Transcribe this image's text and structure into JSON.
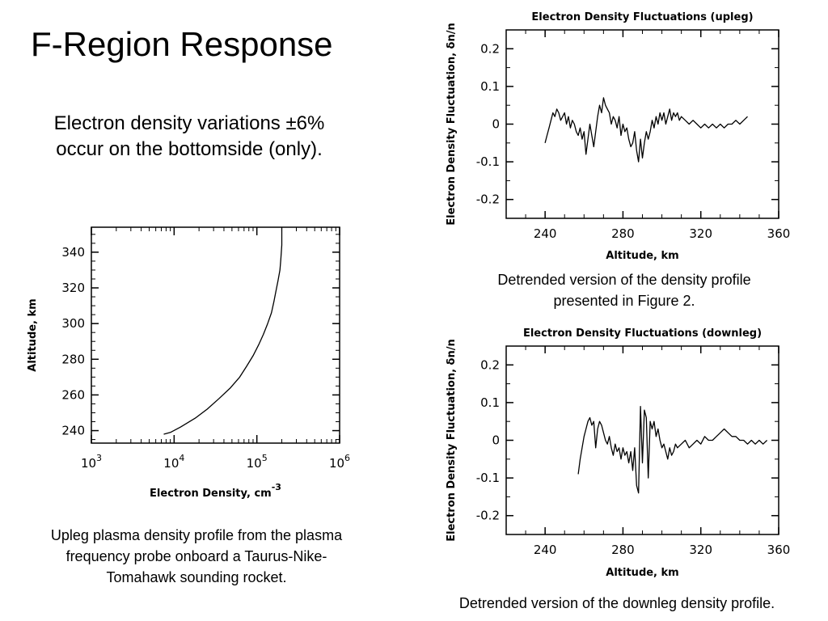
{
  "slide": {
    "title": "F-Region Response",
    "subtitle_lines": [
      "Electron density variations ±6%",
      "occur on the bottomside (only)."
    ]
  },
  "captions": {
    "left_lines": [
      "Upleg plasma density profile from the plasma",
      "frequency probe onboard a Taurus-Nike-",
      "Tomahawk sounding rocket."
    ],
    "top_right_lines": [
      "Detrended version of the density profile",
      "presented in Figure 2."
    ],
    "bottom_right_lines": [
      "Detrended version of the downleg density profile."
    ]
  },
  "chart_data": [
    {
      "type": "line",
      "title": "",
      "xlabel": "Electron Density, cm",
      "xlabel_superscript": "-3",
      "ylabel": "Altitude,  km",
      "xscale": "log",
      "xlim": [
        1000,
        1000000
      ],
      "ylim": [
        233,
        354
      ],
      "x_tick_labels": [
        {
          "value": 1000,
          "base": "10",
          "exp": "3"
        },
        {
          "value": 10000,
          "base": "10",
          "exp": "4"
        },
        {
          "value": 100000,
          "base": "10",
          "exp": "5"
        },
        {
          "value": 1000000,
          "base": "10",
          "exp": "6"
        }
      ],
      "y_ticks": [
        240,
        260,
        280,
        300,
        320,
        340
      ],
      "y_tick_labels": [
        "240",
        "260",
        "280",
        "300",
        "320",
        "340"
      ],
      "series": [
        {
          "x": [
            7500,
            9000,
            12000,
            18000,
            25000,
            35000,
            48000,
            62000,
            75000,
            90000,
            105000,
            120000,
            135000,
            150000,
            160000,
            170000,
            180000,
            190000,
            195000,
            200000,
            200000
          ],
          "y": [
            238,
            239,
            242,
            247,
            252,
            258,
            264,
            270,
            276,
            282,
            288,
            294,
            300,
            306,
            312,
            318,
            324,
            330,
            336,
            344,
            354
          ]
        }
      ]
    },
    {
      "type": "line",
      "title": "Electron Density Fluctuations (upleg)",
      "xlabel": "Altitude, km",
      "ylabel": "Electron Density Fluctuation, δn/n",
      "xlim": [
        220,
        360
      ],
      "ylim": [
        -0.25,
        0.25
      ],
      "x_ticks": [
        240,
        280,
        320,
        360
      ],
      "x_tick_labels": [
        "240",
        "280",
        "320",
        "360"
      ],
      "y_ticks": [
        0.2,
        0.1,
        0,
        -0.1,
        -0.2
      ],
      "y_tick_labels": [
        "0.2",
        "0.1",
        "0",
        "-0.1",
        "-0.2"
      ],
      "series": [
        {
          "x": [
            240,
            241,
            242,
            243,
            244,
            245,
            246,
            247,
            248,
            249,
            250,
            251,
            252,
            253,
            254,
            255,
            256,
            257,
            258,
            259,
            260,
            261,
            262,
            263,
            264,
            265,
            266,
            267,
            268,
            269,
            270,
            271,
            272,
            273,
            274,
            275,
            276,
            277,
            278,
            279,
            280,
            281,
            282,
            283,
            284,
            285,
            286,
            287,
            288,
            289,
            290,
            291,
            292,
            293,
            294,
            295,
            296,
            297,
            298,
            299,
            300,
            301,
            302,
            303,
            304,
            305,
            306,
            307,
            308,
            309,
            310,
            312,
            314,
            316,
            318,
            320,
            322,
            324,
            326,
            328,
            330,
            332,
            334,
            336,
            338,
            340,
            342,
            344
          ],
          "y": [
            -0.05,
            -0.03,
            -0.01,
            0.01,
            0.03,
            0.02,
            0.04,
            0.03,
            0.01,
            0.02,
            0.03,
            0.0,
            0.02,
            -0.01,
            0.01,
            0.0,
            -0.02,
            -0.03,
            -0.01,
            -0.04,
            -0.02,
            -0.08,
            -0.04,
            0.0,
            -0.03,
            -0.06,
            -0.02,
            0.02,
            0.05,
            0.03,
            0.07,
            0.05,
            0.04,
            0.03,
            0.0,
            0.02,
            0.01,
            -0.01,
            0.02,
            -0.03,
            0.0,
            -0.02,
            -0.01,
            -0.04,
            -0.06,
            -0.05,
            -0.02,
            -0.07,
            -0.1,
            -0.04,
            -0.09,
            -0.05,
            -0.02,
            -0.04,
            -0.02,
            0.01,
            -0.01,
            0.02,
            0.0,
            0.03,
            0.01,
            0.03,
            0.0,
            0.02,
            0.04,
            0.01,
            0.03,
            0.02,
            0.03,
            0.01,
            0.02,
            0.01,
            0.0,
            0.01,
            0.0,
            -0.01,
            0.0,
            -0.01,
            0.0,
            -0.01,
            0.0,
            -0.01,
            0.0,
            0.0,
            0.01,
            0.0,
            0.01,
            0.02
          ]
        }
      ]
    },
    {
      "type": "line",
      "title": "Electron Density Fluctuations (downleg)",
      "xlabel": "Altitude, km",
      "ylabel": "Electron Density Fluctuation, δn/n",
      "xlim": [
        220,
        360
      ],
      "ylim": [
        -0.25,
        0.25
      ],
      "x_ticks": [
        240,
        280,
        320,
        360
      ],
      "x_tick_labels": [
        "240",
        "280",
        "320",
        "360"
      ],
      "y_ticks": [
        0.2,
        0.1,
        0,
        -0.1,
        -0.2
      ],
      "y_tick_labels": [
        "0.2",
        "0.1",
        "0",
        "-0.1",
        "-0.2"
      ],
      "series": [
        {
          "x": [
            257,
            258,
            259,
            260,
            261,
            262,
            263,
            264,
            265,
            266,
            267,
            268,
            269,
            270,
            271,
            272,
            273,
            274,
            275,
            276,
            277,
            278,
            279,
            280,
            281,
            282,
            283,
            284,
            285,
            286,
            287,
            288,
            289,
            290,
            291,
            292,
            293,
            294,
            295,
            296,
            297,
            298,
            299,
            300,
            301,
            302,
            303,
            304,
            305,
            306,
            307,
            308,
            310,
            312,
            314,
            316,
            318,
            320,
            322,
            324,
            326,
            328,
            330,
            332,
            334,
            336,
            338,
            340,
            342,
            344,
            346,
            348,
            350,
            352,
            354
          ],
          "y": [
            -0.09,
            -0.05,
            -0.02,
            0.01,
            0.03,
            0.05,
            0.06,
            0.04,
            0.05,
            -0.02,
            0.03,
            0.05,
            0.04,
            0.02,
            0.0,
            -0.01,
            0.01,
            -0.02,
            -0.04,
            -0.01,
            -0.03,
            -0.02,
            -0.05,
            -0.02,
            -0.04,
            -0.03,
            -0.06,
            -0.03,
            -0.08,
            -0.02,
            -0.12,
            -0.14,
            0.09,
            -0.06,
            0.08,
            0.06,
            -0.1,
            0.05,
            0.03,
            0.05,
            0.01,
            0.03,
            0.0,
            -0.02,
            -0.01,
            -0.03,
            -0.05,
            -0.02,
            -0.04,
            -0.03,
            -0.01,
            -0.02,
            -0.01,
            0.0,
            -0.02,
            -0.01,
            0.0,
            -0.01,
            0.01,
            0.0,
            0.0,
            0.01,
            0.02,
            0.03,
            0.02,
            0.01,
            0.01,
            0.0,
            0.0,
            -0.01,
            0.0,
            -0.01,
            0.0,
            -0.01,
            0.0
          ]
        }
      ]
    }
  ]
}
